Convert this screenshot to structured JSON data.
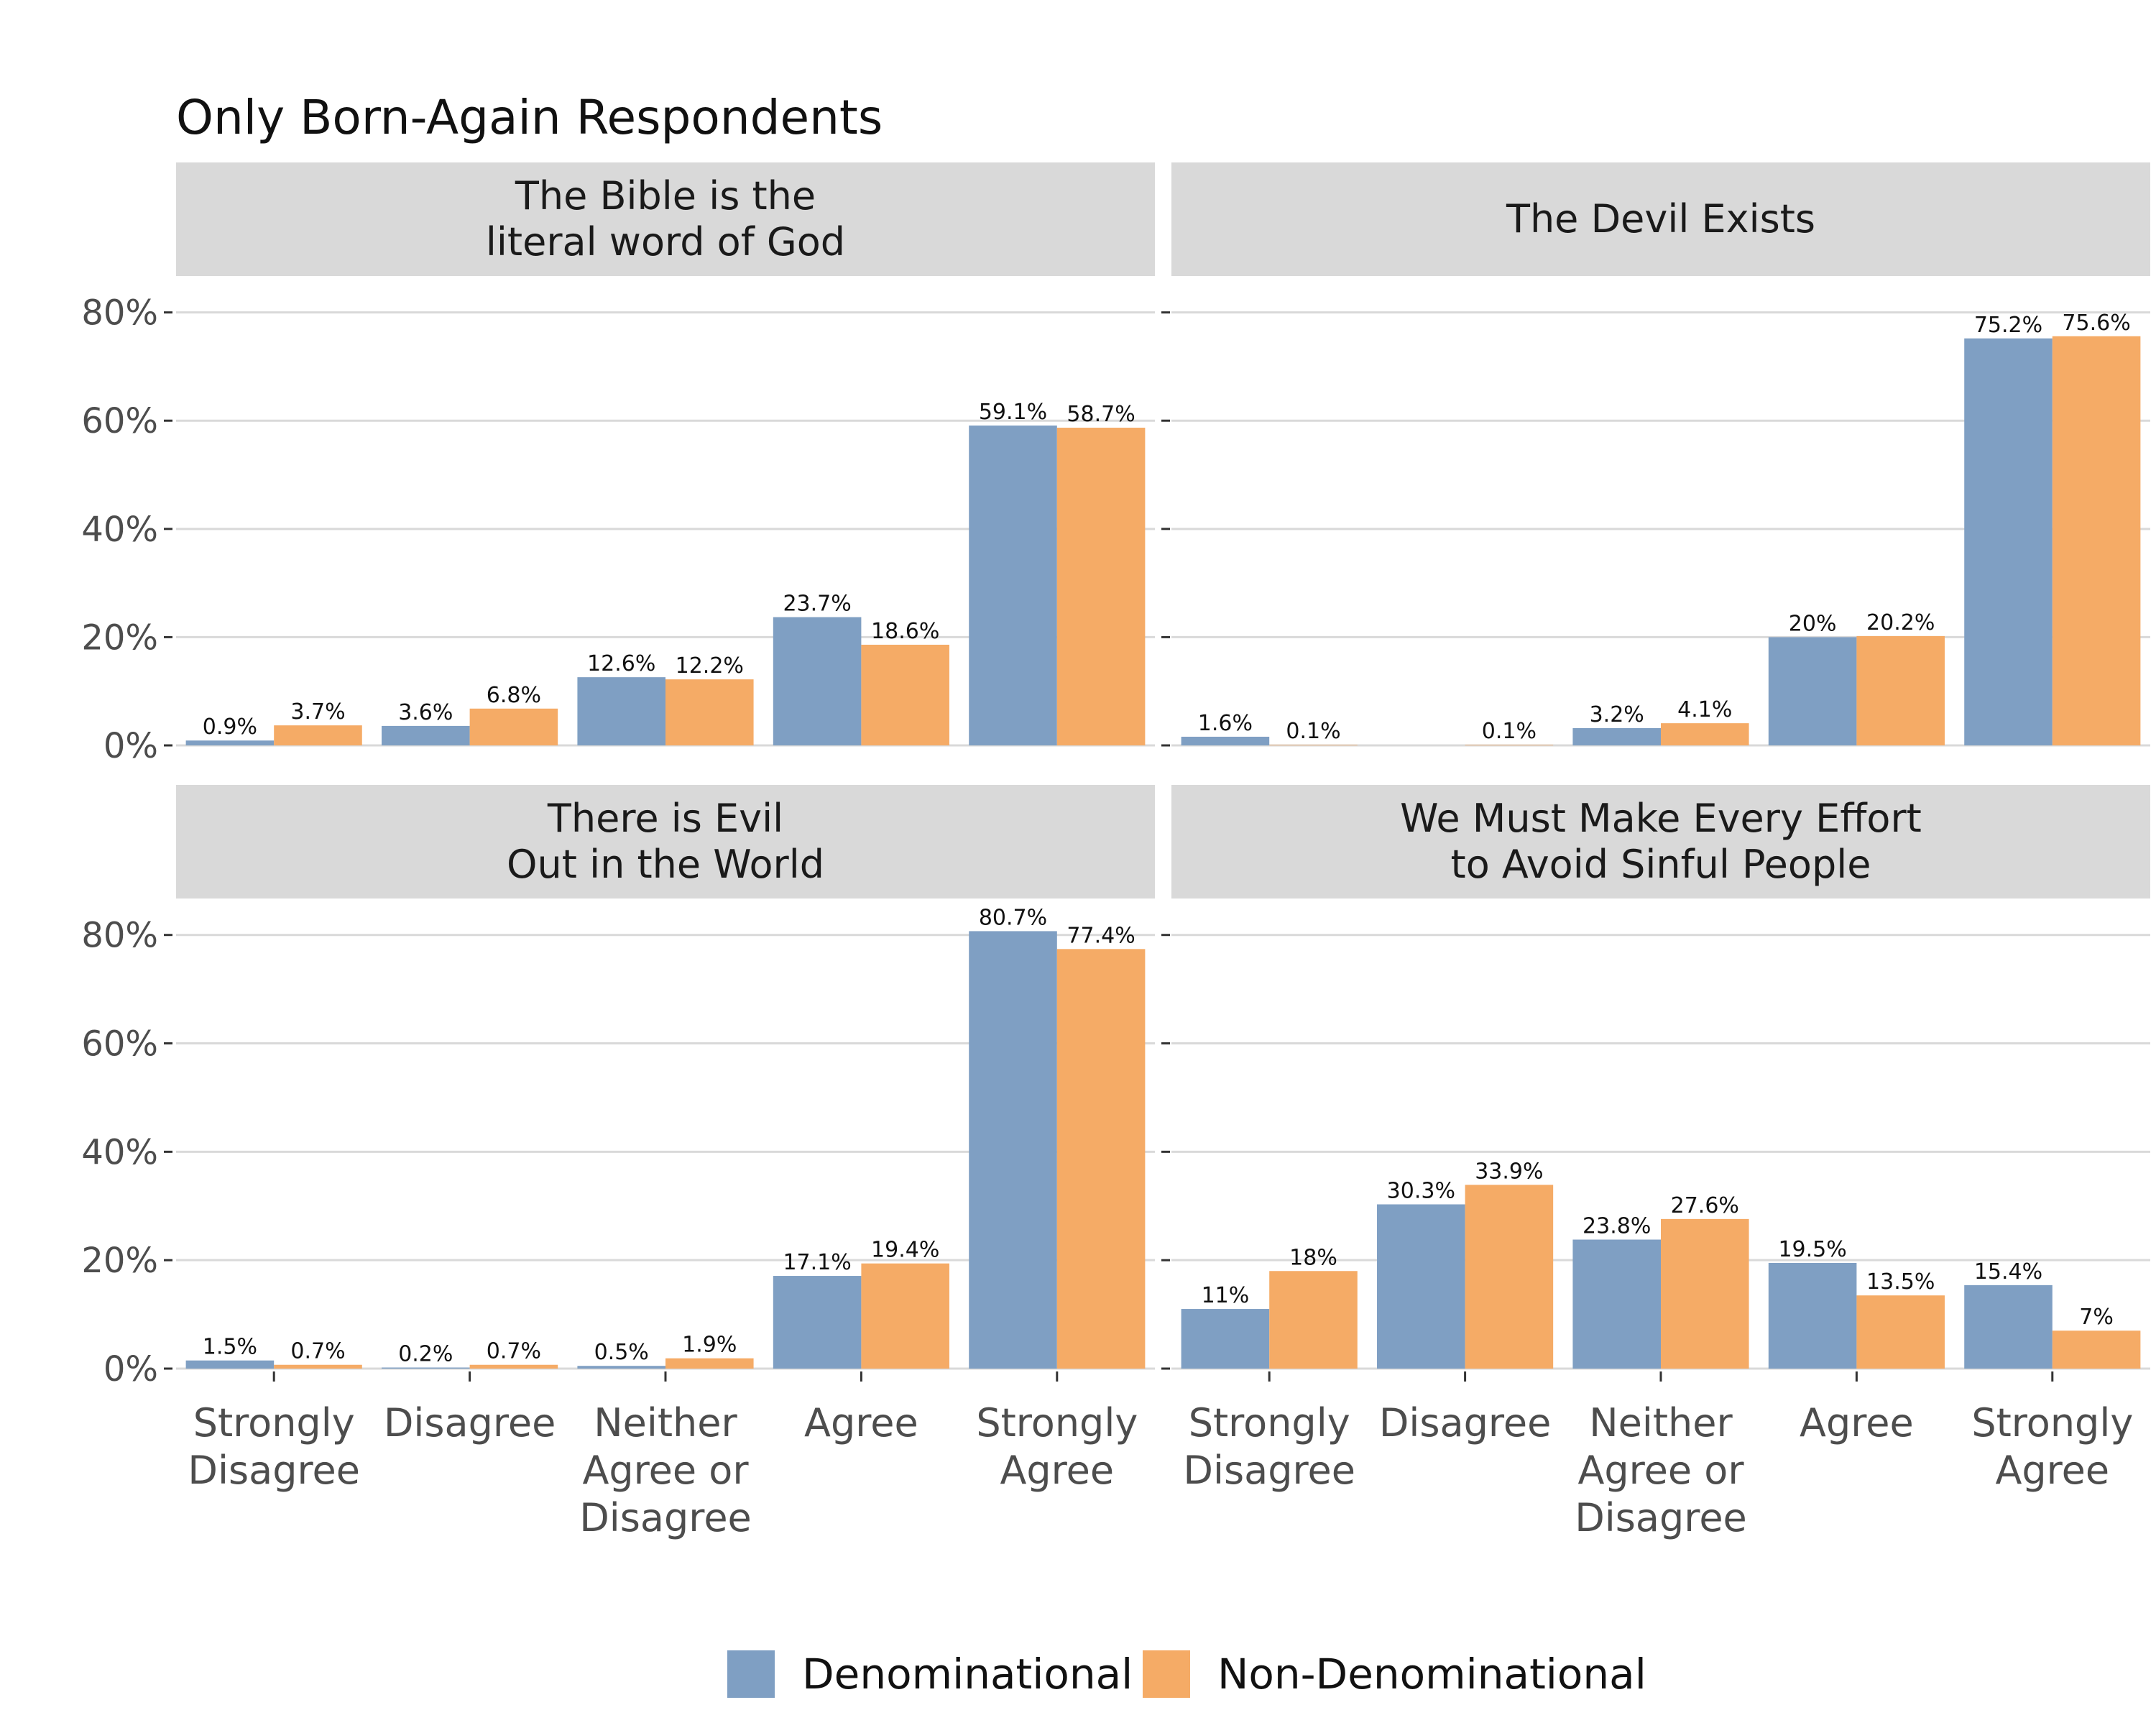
{
  "title": "Only Born-Again Respondents",
  "colors": {
    "series": [
      "#7f9fc3",
      "#f5ab66"
    ],
    "strip": "#d9d9d9",
    "grid": "#d9d9d9",
    "axis_text": "#4d4d4d",
    "text": "#111111"
  },
  "y_ticks": [
    "0%",
    "20%",
    "40%",
    "60%",
    "80%"
  ],
  "legend": {
    "placement": "bottom",
    "items": [
      "Denominational",
      "Non-Denominational"
    ]
  },
  "chart_data": [
    {
      "type": "bar",
      "panel_title": [
        "The Bible is the",
        "literal word of God"
      ],
      "categories": [
        [
          "Strongly",
          "Disagree"
        ],
        [
          "Disagree"
        ],
        [
          "Neither",
          "Agree or",
          "Disagree"
        ],
        [
          "Agree"
        ],
        [
          "Strongly",
          "Agree"
        ]
      ],
      "series": [
        {
          "name": "Denominational",
          "values": [
            0.9,
            3.6,
            12.6,
            23.7,
            59.1
          ],
          "labels": [
            "0.9%",
            "3.6%",
            "12.6%",
            "23.7%",
            "59.1%"
          ]
        },
        {
          "name": "Non-Denominational",
          "values": [
            3.7,
            6.8,
            12.2,
            18.6,
            58.7
          ],
          "labels": [
            "3.7%",
            "6.8%",
            "12.2%",
            "18.6%",
            "58.7%"
          ]
        }
      ],
      "ylim": [
        0,
        85
      ],
      "grid": true
    },
    {
      "type": "bar",
      "panel_title": [
        "The Devil Exists"
      ],
      "categories": [
        [
          "Strongly",
          "Disagree"
        ],
        [
          "Disagree"
        ],
        [
          "Neither",
          "Agree or",
          "Disagree"
        ],
        [
          "Agree"
        ],
        [
          "Strongly",
          "Agree"
        ]
      ],
      "series": [
        {
          "name": "Denominational",
          "values": [
            1.6,
            null,
            3.2,
            20,
            75.2
          ],
          "labels": [
            "1.6%",
            "",
            "3.2%",
            "20%",
            "75.2%"
          ]
        },
        {
          "name": "Non-Denominational",
          "values": [
            0.1,
            0.1,
            4.1,
            20.2,
            75.6
          ],
          "labels": [
            "0.1%",
            "0.1%",
            "4.1%",
            "20.2%",
            "75.6%"
          ]
        }
      ],
      "ylim": [
        0,
        85
      ],
      "grid": true
    },
    {
      "type": "bar",
      "panel_title": [
        "There is Evil",
        "Out in the World"
      ],
      "categories": [
        [
          "Strongly",
          "Disagree"
        ],
        [
          "Disagree"
        ],
        [
          "Neither",
          "Agree or",
          "Disagree"
        ],
        [
          "Agree"
        ],
        [
          "Strongly",
          "Agree"
        ]
      ],
      "series": [
        {
          "name": "Denominational",
          "values": [
            1.5,
            0.2,
            0.5,
            17.1,
            80.7
          ],
          "labels": [
            "1.5%",
            "0.2%",
            "0.5%",
            "17.1%",
            "80.7%"
          ]
        },
        {
          "name": "Non-Denominational",
          "values": [
            0.7,
            0.7,
            1.9,
            19.4,
            77.4
          ],
          "labels": [
            "0.7%",
            "0.7%",
            "1.9%",
            "19.4%",
            "77.4%"
          ]
        }
      ],
      "ylim": [
        0,
        85
      ],
      "grid": true
    },
    {
      "type": "bar",
      "panel_title": [
        "We Must Make Every Effort",
        "to Avoid Sinful People"
      ],
      "categories": [
        [
          "Strongly",
          "Disagree"
        ],
        [
          "Disagree"
        ],
        [
          "Neither",
          "Agree or",
          "Disagree"
        ],
        [
          "Agree"
        ],
        [
          "Strongly",
          "Agree"
        ]
      ],
      "series": [
        {
          "name": "Denominational",
          "values": [
            11,
            30.3,
            23.8,
            19.5,
            15.4
          ],
          "labels": [
            "11%",
            "30.3%",
            "23.8%",
            "19.5%",
            "15.4%"
          ]
        },
        {
          "name": "Non-Denominational",
          "values": [
            18,
            33.9,
            27.6,
            13.5,
            7
          ],
          "labels": [
            "18%",
            "33.9%",
            "27.6%",
            "13.5%",
            "7%"
          ]
        }
      ],
      "ylim": [
        0,
        85
      ],
      "grid": true
    }
  ]
}
